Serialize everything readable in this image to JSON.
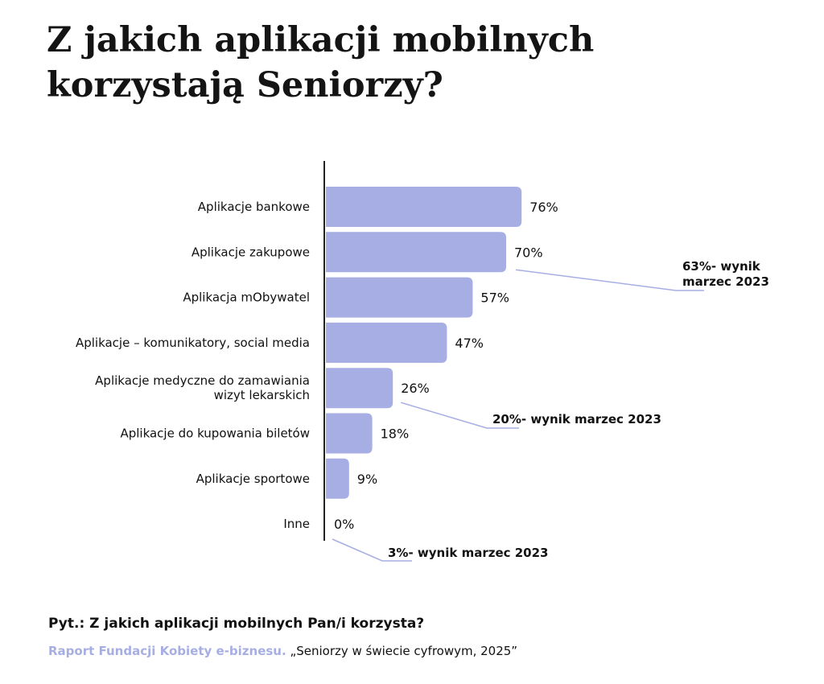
{
  "title_lines": [
    "Z jakich aplikacji mobilnych",
    "korzystają Seniorzy?"
  ],
  "question": "Pyt.: Z jakich aplikacji mobilnych Pan/i korzysta?",
  "source_org": "Raport Fundacji Kobiety e-biznesu.",
  "source_report": " „Seniorzy w świecie cyfrowym, 2025”",
  "colors": {
    "bar": "#a7aee3",
    "axis": "#222222",
    "accent_text": "#a7aee3"
  },
  "chart_data": {
    "type": "bar",
    "orientation": "horizontal",
    "categories": [
      [
        "Aplikacje bankowe"
      ],
      [
        "Aplikacje zakupowe"
      ],
      [
        "Aplikacja mObywatel"
      ],
      [
        "Aplikacje – komunikatory, social media"
      ],
      [
        "Aplikacje medyczne do zamawiania",
        "wizyt lekarskich"
      ],
      [
        "Aplikacje do kupowania biletów"
      ],
      [
        "Aplikacje sportowe"
      ],
      [
        "Inne"
      ]
    ],
    "values": [
      76,
      70,
      57,
      47,
      26,
      18,
      9,
      0
    ],
    "value_labels": [
      "76%",
      "70%",
      "57%",
      "47%",
      "26%",
      "18%",
      "9%",
      "0%"
    ],
    "xlim": [
      0,
      100
    ],
    "annotations": [
      {
        "category_index": 1,
        "lines": [
          "63%- wynik",
          "marzec 2023"
        ]
      },
      {
        "category_index": 4,
        "lines": [
          "20%- wynik marzec 2023"
        ]
      },
      {
        "category_index": 7,
        "lines": [
          "3%- wynik marzec 2023"
        ]
      }
    ]
  }
}
